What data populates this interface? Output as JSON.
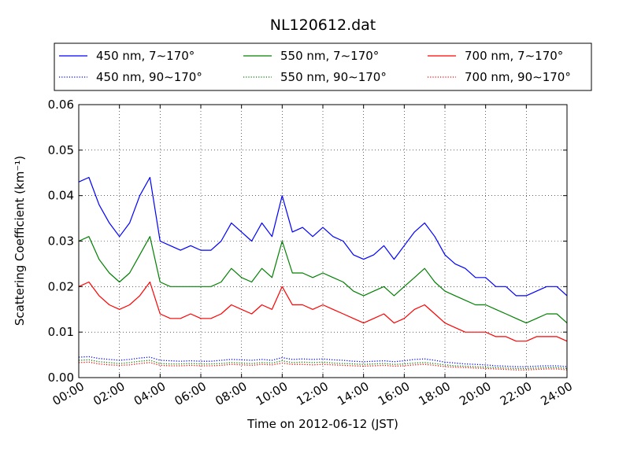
{
  "chart_data": {
    "type": "line",
    "title": "NL120612.dat",
    "xlabel": "Time on 2012-06-12 (JST)",
    "ylabel": "Scattering Coefficient (km⁻¹)",
    "x_ticks": [
      "00:00",
      "02:00",
      "04:00",
      "06:00",
      "08:00",
      "10:00",
      "12:00",
      "14:00",
      "16:00",
      "18:00",
      "20:00",
      "22:00",
      "24:00"
    ],
    "y_ticks": [
      "0.00",
      "0.01",
      "0.02",
      "0.03",
      "0.04",
      "0.05",
      "0.06"
    ],
    "xlim": [
      0,
      24
    ],
    "ylim": [
      0,
      0.06
    ],
    "grid": true,
    "legend_position": "top",
    "x": [
      0,
      0.5,
      1,
      1.5,
      2,
      2.5,
      3,
      3.5,
      4,
      4.5,
      5,
      5.5,
      6,
      6.5,
      7,
      7.5,
      8,
      8.5,
      9,
      9.5,
      10,
      10.5,
      11,
      11.5,
      12,
      12.5,
      13,
      13.5,
      14,
      14.5,
      15,
      15.5,
      16,
      16.5,
      17,
      17.5,
      18,
      18.5,
      19,
      19.5,
      20,
      20.5,
      21,
      21.5,
      22,
      22.5,
      23,
      23.5,
      24
    ],
    "series": [
      {
        "name": "450 nm, 7∼170°",
        "color": "#0000ff",
        "style": "solid",
        "values": [
          0.043,
          0.044,
          0.038,
          0.034,
          0.031,
          0.034,
          0.04,
          0.044,
          0.03,
          0.029,
          0.028,
          0.029,
          0.028,
          0.028,
          0.03,
          0.034,
          0.032,
          0.03,
          0.034,
          0.031,
          0.04,
          0.032,
          0.033,
          0.031,
          0.033,
          0.031,
          0.03,
          0.027,
          0.026,
          0.027,
          0.029,
          0.026,
          0.029,
          0.032,
          0.034,
          0.031,
          0.027,
          0.025,
          0.024,
          0.022,
          0.022,
          0.02,
          0.02,
          0.018,
          0.018,
          0.019,
          0.02,
          0.02,
          0.018
        ]
      },
      {
        "name": "550 nm, 7∼170°",
        "color": "#008000",
        "style": "solid",
        "values": [
          0.03,
          0.031,
          0.026,
          0.023,
          0.021,
          0.023,
          0.027,
          0.031,
          0.021,
          0.02,
          0.02,
          0.02,
          0.02,
          0.02,
          0.021,
          0.024,
          0.022,
          0.021,
          0.024,
          0.022,
          0.03,
          0.023,
          0.023,
          0.022,
          0.023,
          0.022,
          0.021,
          0.019,
          0.018,
          0.019,
          0.02,
          0.018,
          0.02,
          0.022,
          0.024,
          0.021,
          0.019,
          0.018,
          0.017,
          0.016,
          0.016,
          0.015,
          0.014,
          0.013,
          0.012,
          0.013,
          0.014,
          0.014,
          0.012
        ]
      },
      {
        "name": "700 nm, 7∼170°",
        "color": "#ff0000",
        "style": "solid",
        "values": [
          0.02,
          0.021,
          0.018,
          0.016,
          0.015,
          0.016,
          0.018,
          0.021,
          0.014,
          0.013,
          0.013,
          0.014,
          0.013,
          0.013,
          0.014,
          0.016,
          0.015,
          0.014,
          0.016,
          0.015,
          0.02,
          0.016,
          0.016,
          0.015,
          0.016,
          0.015,
          0.014,
          0.013,
          0.012,
          0.013,
          0.014,
          0.012,
          0.013,
          0.015,
          0.016,
          0.014,
          0.012,
          0.011,
          0.01,
          0.01,
          0.01,
          0.009,
          0.009,
          0.008,
          0.008,
          0.009,
          0.009,
          0.009,
          0.008
        ]
      },
      {
        "name": "450 nm, 90∼170°",
        "color": "#0000ff",
        "style": "dotted",
        "values": [
          0.0045,
          0.0046,
          0.0042,
          0.004,
          0.0038,
          0.004,
          0.0043,
          0.0045,
          0.0038,
          0.0037,
          0.0036,
          0.0037,
          0.0036,
          0.0036,
          0.0038,
          0.004,
          0.0039,
          0.0038,
          0.004,
          0.0038,
          0.0044,
          0.004,
          0.0041,
          0.004,
          0.0041,
          0.0039,
          0.0038,
          0.0036,
          0.0035,
          0.0036,
          0.0037,
          0.0035,
          0.0037,
          0.004,
          0.0041,
          0.0038,
          0.0034,
          0.0032,
          0.003,
          0.0029,
          0.0028,
          0.0026,
          0.0025,
          0.0024,
          0.0024,
          0.0025,
          0.0026,
          0.0026,
          0.0024
        ]
      },
      {
        "name": "550 nm, 90∼170°",
        "color": "#008000",
        "style": "dotted",
        "values": [
          0.0038,
          0.0039,
          0.0035,
          0.0033,
          0.0031,
          0.0033,
          0.0036,
          0.0038,
          0.0031,
          0.003,
          0.003,
          0.0031,
          0.003,
          0.003,
          0.0031,
          0.0033,
          0.0032,
          0.0031,
          0.0033,
          0.0032,
          0.0037,
          0.0033,
          0.0034,
          0.0033,
          0.0034,
          0.0032,
          0.0031,
          0.003,
          0.0029,
          0.003,
          0.0031,
          0.0029,
          0.003,
          0.0032,
          0.0033,
          0.0031,
          0.0028,
          0.0026,
          0.0025,
          0.0024,
          0.0023,
          0.0022,
          0.0021,
          0.002,
          0.002,
          0.0021,
          0.0022,
          0.0022,
          0.002
        ]
      },
      {
        "name": "700 nm, 90∼170°",
        "color": "#ff0000",
        "style": "dotted",
        "values": [
          0.0033,
          0.0034,
          0.003,
          0.0028,
          0.0027,
          0.0028,
          0.0031,
          0.0033,
          0.0027,
          0.0026,
          0.0026,
          0.0027,
          0.0026,
          0.0026,
          0.0027,
          0.0029,
          0.0028,
          0.0027,
          0.0029,
          0.0028,
          0.0032,
          0.0029,
          0.0029,
          0.0028,
          0.0029,
          0.0028,
          0.0027,
          0.0026,
          0.0025,
          0.0026,
          0.0027,
          0.0025,
          0.0026,
          0.0028,
          0.0029,
          0.0027,
          0.0024,
          0.0023,
          0.0022,
          0.0021,
          0.002,
          0.0019,
          0.0018,
          0.0017,
          0.0017,
          0.0018,
          0.0019,
          0.0019,
          0.0017
        ]
      }
    ]
  }
}
